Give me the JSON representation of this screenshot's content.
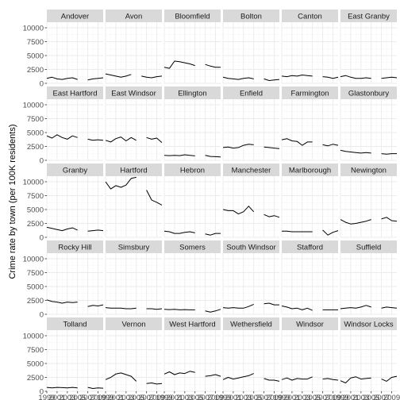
{
  "chart_data": {
    "type": "line",
    "layout": "faceted",
    "facet_columns": 6,
    "title": "",
    "xlabel": "",
    "ylabel": "Crime rate by town (per 100K residents)",
    "ylim": [
      0,
      11000
    ],
    "y_ticks": [
      0,
      2500,
      5000,
      7500,
      10000
    ],
    "y_tick_labels": [
      "0",
      "2500",
      "5000",
      "7500",
      "10000"
    ],
    "xlim": [
      1999,
      2010
    ],
    "x_ticks": [
      1999,
      2001,
      2003,
      2005,
      2007,
      2009
    ],
    "x_tick_labels": [
      "1999",
      "2001",
      "2003",
      "2005",
      "2007",
      "2009"
    ],
    "grid": true,
    "legend": "none",
    "colors": {
      "panel": "#ffffff",
      "strip": "#d9d9d9",
      "grid": "#ebebeb",
      "line": "#000000"
    },
    "x": [
      1999,
      2000,
      2001,
      2002,
      2003,
      2004,
      2005,
      2006,
      2007,
      2008,
      2009,
      2010
    ],
    "series": [
      {
        "name": "Andover",
        "values": [
          900,
          1100,
          800,
          700,
          900,
          1000,
          700,
          null,
          600,
          800,
          900,
          1000
        ]
      },
      {
        "name": "Avon",
        "values": [
          1700,
          1500,
          1300,
          1100,
          1300,
          1600,
          null,
          1300,
          1100,
          1000,
          1200,
          1300
        ]
      },
      {
        "name": "Bloomfield",
        "values": [
          2900,
          2700,
          4000,
          3900,
          3700,
          3500,
          3200,
          null,
          3400,
          3100,
          2900,
          2900
        ]
      },
      {
        "name": "Bolton",
        "values": [
          1100,
          900,
          800,
          700,
          900,
          1000,
          800,
          null,
          800,
          500,
          600,
          700
        ]
      },
      {
        "name": "Canton",
        "values": [
          1300,
          1200,
          1400,
          1300,
          1500,
          1400,
          1300,
          null,
          1200,
          1100,
          900,
          1100
        ]
      },
      {
        "name": "East Granby",
        "values": [
          1200,
          1400,
          1100,
          900,
          900,
          1000,
          900,
          null,
          900,
          1000,
          1100,
          1000
        ]
      },
      {
        "name": "East Hartford",
        "values": [
          4400,
          4000,
          4600,
          4100,
          3800,
          4400,
          4100,
          null,
          3800,
          3600,
          3700,
          3600
        ]
      },
      {
        "name": "East Windsor",
        "values": [
          3600,
          3300,
          3900,
          4200,
          3500,
          4100,
          3600,
          null,
          4100,
          3800,
          4000,
          3200
        ]
      },
      {
        "name": "Ellington",
        "values": [
          900,
          850,
          900,
          850,
          1000,
          900,
          800,
          null,
          900,
          700,
          650,
          600
        ]
      },
      {
        "name": "Enfield",
        "values": [
          2300,
          2400,
          2200,
          2300,
          2700,
          2900,
          2800,
          null,
          2400,
          2300,
          2200,
          2100
        ]
      },
      {
        "name": "Farmington",
        "values": [
          3700,
          3900,
          3500,
          3400,
          2700,
          3300,
          3300,
          null,
          2800,
          2600,
          2900,
          2700
        ]
      },
      {
        "name": "Glastonbury",
        "values": [
          1800,
          1600,
          1500,
          1400,
          1300,
          1400,
          1300,
          null,
          1200,
          1100,
          1200,
          1200
        ]
      },
      {
        "name": "Granby",
        "values": [
          1800,
          1600,
          1400,
          1200,
          1500,
          1700,
          1300,
          null,
          1100,
          1200,
          1300,
          1200
        ]
      },
      {
        "name": "Hartford",
        "values": [
          10000,
          8700,
          9300,
          9000,
          9400,
          10600,
          10800,
          null,
          8500,
          6700,
          6300,
          5800
        ]
      },
      {
        "name": "Hebron",
        "values": [
          1100,
          1000,
          700,
          700,
          900,
          1000,
          800,
          null,
          600,
          400,
          700,
          700
        ]
      },
      {
        "name": "Manchester",
        "values": [
          5000,
          4800,
          4800,
          4200,
          4600,
          5600,
          4600,
          null,
          4100,
          3700,
          3900,
          3600
        ]
      },
      {
        "name": "Marlborough",
        "values": [
          1100,
          1100,
          1000,
          1000,
          1000,
          1000,
          1000,
          null,
          1300,
          400,
          900,
          1200
        ]
      },
      {
        "name": "Newington",
        "values": [
          3200,
          2700,
          2400,
          2500,
          2700,
          2900,
          3200,
          null,
          3300,
          3600,
          3000,
          2900
        ]
      },
      {
        "name": "Rocky Hill",
        "values": [
          2600,
          2300,
          2200,
          2000,
          2200,
          2100,
          2200,
          null,
          1400,
          1600,
          1500,
          1700
        ]
      },
      {
        "name": "Simsbury",
        "values": [
          1200,
          1100,
          1100,
          1100,
          1000,
          1000,
          1100,
          null,
          1000,
          1000,
          900,
          1000
        ]
      },
      {
        "name": "Somers",
        "values": [
          900,
          850,
          900,
          800,
          850,
          800,
          800,
          null,
          600,
          400,
          600,
          900
        ]
      },
      {
        "name": "South Windsor",
        "values": [
          1200,
          1100,
          1200,
          1100,
          1100,
          1400,
          1800,
          null,
          1900,
          2000,
          1700,
          1700
        ]
      },
      {
        "name": "Stafford",
        "values": [
          1500,
          1300,
          1000,
          1100,
          800,
          1100,
          700,
          null,
          800,
          800,
          800,
          800
        ]
      },
      {
        "name": "Suffield",
        "values": [
          1000,
          1100,
          1200,
          1100,
          1300,
          1600,
          1300,
          null,
          1100,
          1300,
          1200,
          1100
        ]
      },
      {
        "name": "Tolland",
        "values": [
          700,
          600,
          700,
          650,
          600,
          700,
          600,
          null,
          700,
          500,
          600,
          550
        ]
      },
      {
        "name": "Vernon",
        "values": [
          2100,
          2500,
          3100,
          3300,
          3000,
          2700,
          1800,
          null,
          1400,
          1500,
          1300,
          1400
        ]
      },
      {
        "name": "West Hartford",
        "values": [
          3100,
          3500,
          3000,
          3300,
          3200,
          3600,
          3400,
          null,
          2700,
          2800,
          3000,
          2700
        ]
      },
      {
        "name": "Wethersfield",
        "values": [
          2100,
          2500,
          2200,
          2400,
          2600,
          2800,
          3200,
          null,
          2300,
          2000,
          2000,
          1800
        ]
      },
      {
        "name": "Windsor",
        "values": [
          2100,
          2400,
          2000,
          2300,
          2200,
          2200,
          2600,
          null,
          2200,
          2300,
          2100,
          2000
        ]
      },
      {
        "name": "Windsor Locks",
        "values": [
          1900,
          1500,
          2400,
          2600,
          2200,
          2300,
          2400,
          null,
          2200,
          1800,
          2500,
          2700
        ]
      }
    ]
  }
}
